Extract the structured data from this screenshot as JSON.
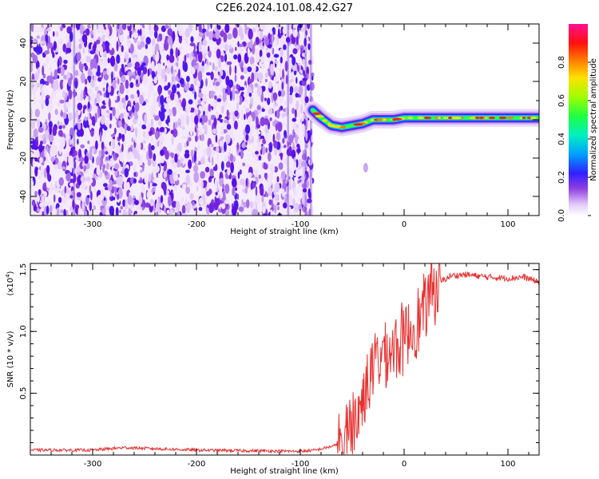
{
  "title": "C2E6.2024.101.08.42.G27",
  "chart_data": [
    {
      "type": "heatmap",
      "xlabel": "Height of straight line (km)",
      "ylabel": "Frequency (Hz)",
      "xlim": [
        -360,
        130
      ],
      "ylim": [
        -50,
        50
      ],
      "xticks": [
        -300,
        -200,
        -100,
        0,
        100
      ],
      "yticks": [
        -40,
        -20,
        0,
        20,
        40
      ],
      "colorbar": {
        "label": "Normalized spectral amplitude",
        "range": [
          0.0,
          1.0
        ],
        "ticks": [
          0.0,
          0.2,
          0.4,
          0.6,
          0.8
        ],
        "colormap": [
          "#ffffff",
          "#c8a8f0",
          "#8020e0",
          "#2020ff",
          "#00b0ff",
          "#00ffa0",
          "#40ff00",
          "#ffff00",
          "#ff8000",
          "#ff0000",
          "#ff0080"
        ]
      },
      "noise_region_km": [
        -360,
        -88
      ],
      "signal_track": [
        {
          "x": -88,
          "y": 5
        },
        {
          "x": -80,
          "y": 1
        },
        {
          "x": -70,
          "y": -3
        },
        {
          "x": -60,
          "y": -4
        },
        {
          "x": -50,
          "y": -3
        },
        {
          "x": -40,
          "y": -2
        },
        {
          "x": -30,
          "y": 0
        },
        {
          "x": -20,
          "y": 0
        },
        {
          "x": -10,
          "y": 0
        },
        {
          "x": 0,
          "y": 1
        },
        {
          "x": 20,
          "y": 1
        },
        {
          "x": 40,
          "y": 1
        },
        {
          "x": 60,
          "y": 1
        },
        {
          "x": 80,
          "y": 1
        },
        {
          "x": 100,
          "y": 1
        },
        {
          "x": 130,
          "y": 1
        }
      ]
    },
    {
      "type": "line",
      "xlabel": "Height of straight line (km)",
      "ylabel": "SNR (10 * v/v)",
      "yscale_label": "(x10",
      "yscale_exp": "4",
      "yscale_close": ")",
      "xlim": [
        -360,
        130
      ],
      "ylim": [
        0,
        1.55
      ],
      "xticks": [
        -300,
        -200,
        -100,
        0,
        100
      ],
      "yticks": [
        "0.5",
        "1.0",
        "1.5"
      ],
      "ytick_values": [
        0.5,
        1.0,
        1.5
      ],
      "series": [
        {
          "color": "#e83030",
          "baseline_points": [
            {
              "x": -360,
              "y": 0.04
            },
            {
              "x": -300,
              "y": 0.04
            },
            {
              "x": -270,
              "y": 0.06
            },
            {
              "x": -200,
              "y": 0.04
            },
            {
              "x": -100,
              "y": 0.03
            },
            {
              "x": -85,
              "y": 0.04
            },
            {
              "x": -65,
              "y": 0.08
            },
            {
              "x": -55,
              "y": 0.2
            },
            {
              "x": -45,
              "y": 0.3
            },
            {
              "x": -35,
              "y": 0.6
            },
            {
              "x": -25,
              "y": 0.8
            },
            {
              "x": -15,
              "y": 0.85
            },
            {
              "x": -5,
              "y": 0.9
            },
            {
              "x": 5,
              "y": 1.0
            },
            {
              "x": 15,
              "y": 1.1
            },
            {
              "x": 25,
              "y": 1.3
            },
            {
              "x": 35,
              "y": 1.4
            },
            {
              "x": 45,
              "y": 1.45
            },
            {
              "x": 60,
              "y": 1.46
            },
            {
              "x": 80,
              "y": 1.44
            },
            {
              "x": 100,
              "y": 1.43
            },
            {
              "x": 115,
              "y": 1.44
            },
            {
              "x": 130,
              "y": 1.4
            }
          ]
        }
      ]
    }
  ]
}
